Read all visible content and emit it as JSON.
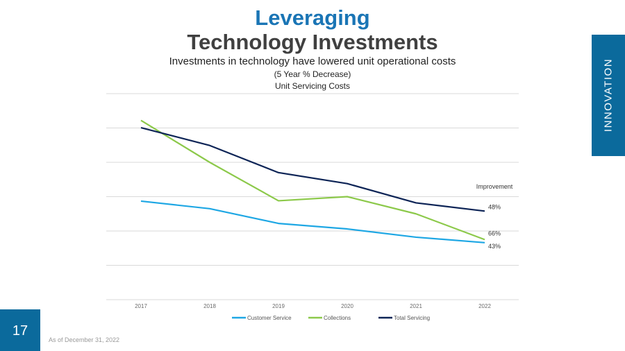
{
  "slide": {
    "title_accent": "Leveraging",
    "title_main": "Technology Investments",
    "subtitle": "Investments in technology have lowered unit operational costs",
    "subnote": "(5 Year % Decrease)",
    "side_tab": "INNOVATION",
    "page_number": "17",
    "footnote": "As of December 31, 2022"
  },
  "colors": {
    "accent_blue": "#1a75b5",
    "tab_blue": "#0b6a9c",
    "customer_service": "#1ea7e4",
    "collections": "#8cc94a",
    "total_servicing": "#0d2456"
  },
  "chart_data": {
    "type": "line",
    "title": "Unit Servicing Costs",
    "categories": [
      "2017",
      "2018",
      "2019",
      "2020",
      "2021",
      "2022"
    ],
    "ylim": [
      0,
      6
    ],
    "grid": true,
    "series": [
      {
        "name": "Customer Service",
        "values": [
          2.87,
          2.65,
          2.22,
          2.06,
          1.82,
          1.66
        ],
        "end_label": "43%"
      },
      {
        "name": "Collections",
        "values": [
          5.22,
          4.0,
          2.88,
          3.0,
          2.5,
          1.75
        ],
        "end_label": "66%"
      },
      {
        "name": "Total Servicing",
        "values": [
          5.01,
          4.49,
          3.7,
          3.38,
          2.82,
          2.58
        ],
        "end_label": "48%"
      }
    ],
    "annotation": "Improvement",
    "legend_position": "bottom"
  }
}
